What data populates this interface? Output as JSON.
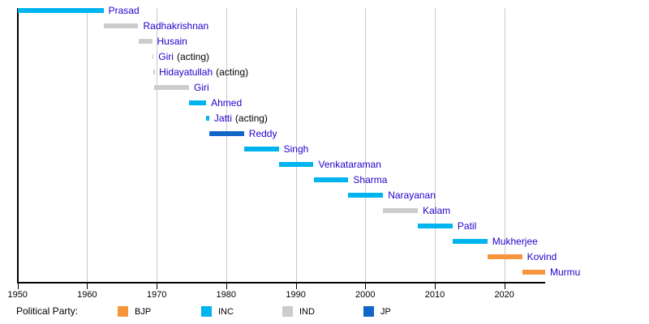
{
  "chart_data": {
    "type": "bar",
    "subtype": "timeline-gantt",
    "description": "Timeline of Presidents of India colored by political party",
    "x_axis": {
      "ticks": [
        1950,
        1960,
        1970,
        1980,
        1990,
        2000,
        2010,
        2020
      ],
      "range": [
        1950,
        2025.9
      ],
      "grid": true
    },
    "legend": {
      "label": "Political Party:",
      "position": "bottom",
      "items": [
        {
          "name": "BJP",
          "color": "#F7953B"
        },
        {
          "name": "INC",
          "color": "#00B4F0"
        },
        {
          "name": "IND",
          "color": "#CCCCCC"
        },
        {
          "name": "JP",
          "color": "#1166C8"
        }
      ]
    },
    "bars": [
      {
        "label": "Prasad",
        "suffix": "",
        "party": "INC",
        "start": 1950.07,
        "end": 1962.36
      },
      {
        "label": "Radhakrishnan",
        "suffix": "",
        "party": "IND",
        "start": 1962.36,
        "end": 1967.36
      },
      {
        "label": "Husain",
        "suffix": "",
        "party": "IND",
        "start": 1967.36,
        "end": 1969.34
      },
      {
        "label": "Giri",
        "suffix": "(acting)",
        "party": "IND",
        "start": 1969.34,
        "end": 1969.55
      },
      {
        "label": "Hidayatullah",
        "suffix": "(acting)",
        "party": "IND",
        "start": 1969.55,
        "end": 1969.65
      },
      {
        "label": "Giri",
        "suffix": "",
        "party": "IND",
        "start": 1969.65,
        "end": 1974.65
      },
      {
        "label": "Ahmed",
        "suffix": "",
        "party": "INC",
        "start": 1974.65,
        "end": 1977.11
      },
      {
        "label": "Jatti",
        "suffix": "(acting)",
        "party": "INC",
        "start": 1977.11,
        "end": 1977.56
      },
      {
        "label": "Reddy",
        "suffix": "",
        "party": "JP",
        "start": 1977.56,
        "end": 1982.56
      },
      {
        "label": "Singh",
        "suffix": "",
        "party": "INC",
        "start": 1982.56,
        "end": 1987.56
      },
      {
        "label": "Venkataraman",
        "suffix": "",
        "party": "INC",
        "start": 1987.56,
        "end": 1992.56
      },
      {
        "label": "Sharma",
        "suffix": "",
        "party": "INC",
        "start": 1992.56,
        "end": 1997.56
      },
      {
        "label": "Narayanan",
        "suffix": "",
        "party": "INC",
        "start": 1997.56,
        "end": 2002.56
      },
      {
        "label": "Kalam",
        "suffix": "",
        "party": "IND",
        "start": 2002.56,
        "end": 2007.56
      },
      {
        "label": "Patil",
        "suffix": "",
        "party": "INC",
        "start": 2007.56,
        "end": 2012.56
      },
      {
        "label": "Mukherjee",
        "suffix": "",
        "party": "INC",
        "start": 2012.56,
        "end": 2017.56
      },
      {
        "label": "Kovind",
        "suffix": "",
        "party": "BJP",
        "start": 2017.56,
        "end": 2022.56
      },
      {
        "label": "Murmu",
        "suffix": "",
        "party": "BJP",
        "start": 2022.56,
        "end": 2025.87
      }
    ]
  },
  "colors": {
    "background": "#FFFFFF",
    "axis": "#000000",
    "gridline": "#C8C8C8",
    "bar_label_link": "#2200CC",
    "acting_suffix": "#000000"
  }
}
